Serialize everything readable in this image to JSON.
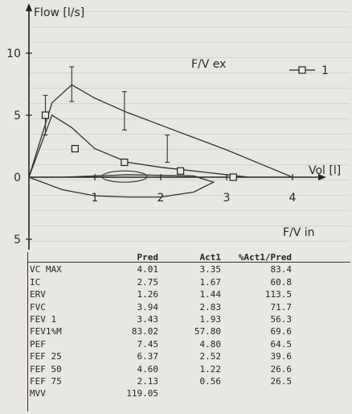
{
  "chart_data": {
    "type": "line",
    "title": "",
    "xlabel": "Vol [l]",
    "ylabel_top": "Flow [l/s]",
    "ylabel_expiratory": "F/V ex",
    "ylabel_inspiratory": "F/V in",
    "xlim": [
      0,
      5
    ],
    "ylim": [
      -6,
      12
    ],
    "x_ticks": [
      "1",
      "2",
      "3",
      "4"
    ],
    "y_ticks_up": [
      "5",
      "10"
    ],
    "y_ticks_zero": "0",
    "y_ticks_down": [
      "5"
    ],
    "legend": {
      "position": "top-right",
      "entries": [
        "1"
      ]
    },
    "series": [
      {
        "name": "1",
        "x": [
          0,
          0.35,
          0.65,
          1.0,
          1.5,
          2.0,
          2.5,
          3.0,
          3.35
        ],
        "y": [
          0,
          5.0,
          4.0,
          2.3,
          1.2,
          0.8,
          0.5,
          0.2,
          0
        ]
      }
    ],
    "predicted_expiratory_curve": {
      "x": [
        0,
        0.35,
        0.65,
        1.0,
        1.5,
        2.0,
        2.5,
        3.0,
        3.5,
        4.0
      ],
      "y": [
        0,
        6.0,
        7.45,
        6.37,
        5.2,
        4.2,
        3.2,
        2.2,
        1.1,
        0
      ]
    },
    "predicted_error_bars": [
      {
        "x": 0.25,
        "lo": 3.4,
        "hi": 6.6
      },
      {
        "x": 0.65,
        "lo": 6.1,
        "hi": 8.9
      },
      {
        "x": 1.45,
        "lo": 3.8,
        "hi": 6.9
      },
      {
        "x": 2.1,
        "lo": 1.2,
        "hi": 3.4
      }
    ],
    "measured_markers": [
      {
        "x": 0.25,
        "y": 5.0
      },
      {
        "x": 0.7,
        "y": 2.3
      },
      {
        "x": 1.45,
        "y": 1.2
      },
      {
        "x": 2.3,
        "y": 0.5
      },
      {
        "x": 3.1,
        "y": 0.0
      }
    ],
    "inspiratory_curve": {
      "x": [
        0,
        0.5,
        1.0,
        1.5,
        2.0,
        2.5,
        2.8,
        2.5,
        2.0,
        1.5,
        1.0,
        0.5,
        0
      ],
      "y": [
        0,
        -1.0,
        -1.5,
        -1.6,
        -1.6,
        -1.2,
        -0.4,
        0.1,
        0.15,
        0.2,
        0.1,
        0.0,
        0
      ]
    }
  },
  "results_table": {
    "headers": [
      "Pred",
      "Act1",
      "%Act1/Pred"
    ],
    "rows": [
      {
        "param": "VC MAX",
        "pred": "4.01",
        "act": "3.35",
        "pct": "83.4"
      },
      {
        "param": "IC",
        "pred": "2.75",
        "act": "1.67",
        "pct": "60.8"
      },
      {
        "param": "ERV",
        "pred": "1.26",
        "act": "1.44",
        "pct": "113.5"
      },
      {
        "param": "FVC",
        "pred": "3.94",
        "act": "2.83",
        "pct": "71.7"
      },
      {
        "param": "FEV 1",
        "pred": "3.43",
        "act": "1.93",
        "pct": "56.3"
      },
      {
        "param": "FEV1%M",
        "pred": "83.02",
        "act": "57.80",
        "pct": "69.6"
      },
      {
        "param": "PEF",
        "pred": "7.45",
        "act": "4.80",
        "pct": "64.5"
      },
      {
        "param": "FEF 25",
        "pred": "6.37",
        "act": "2.52",
        "pct": "39.6"
      },
      {
        "param": "FEF 50",
        "pred": "4.60",
        "act": "1.22",
        "pct": "26.6"
      },
      {
        "param": "FEF 75",
        "pred": "2.13",
        "act": "0.56",
        "pct": "26.5"
      },
      {
        "param": "MVV",
        "pred": "119.05",
        "act": "",
        "pct": ""
      }
    ]
  }
}
